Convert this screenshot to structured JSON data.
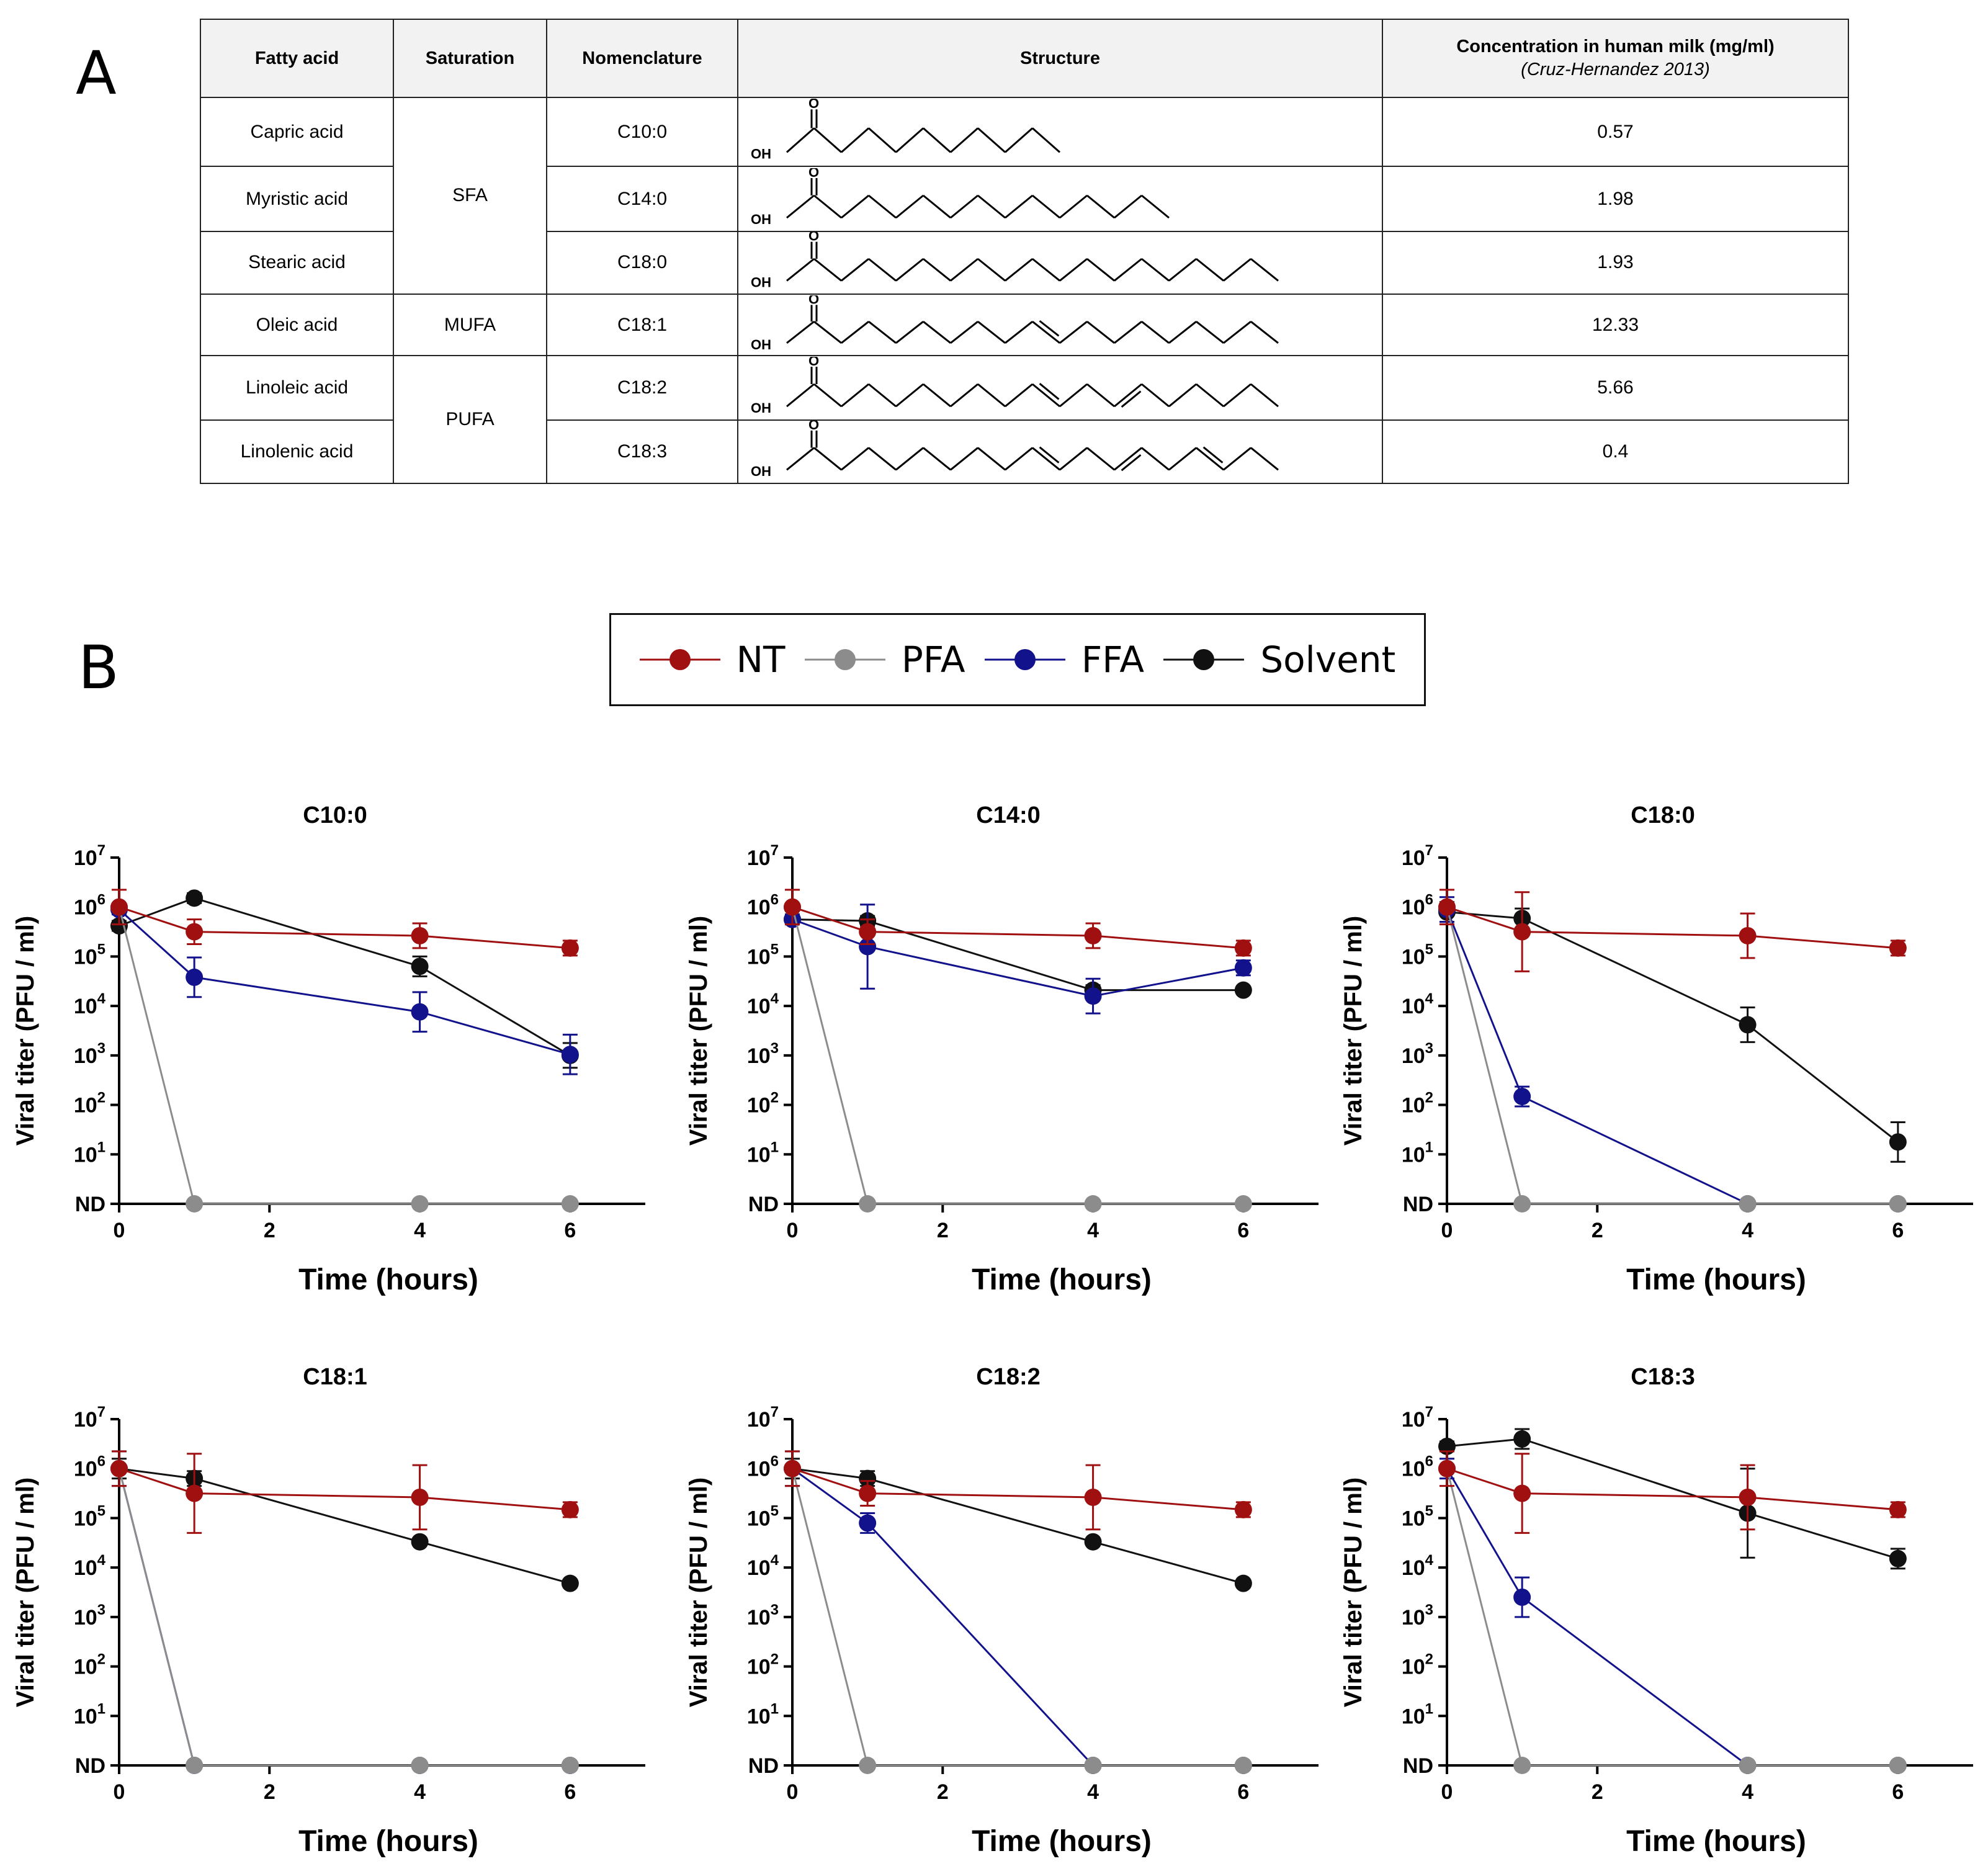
{
  "panel_a": {
    "letter": "A",
    "headers": {
      "fatty_acid": "Fatty acid",
      "saturation": "Saturation",
      "nomenclature": "Nomenclature",
      "structure": "Structure",
      "concentration": "Concentration in human milk (mg/ml)",
      "concentration_source": "(Cruz-Hernandez 2013)"
    },
    "structure_labels": {
      "oxygen": "O",
      "hydroxyl": "OH"
    },
    "groups": {
      "sfa": "SFA",
      "mufa": "MUFA",
      "pufa": "PUFA"
    },
    "rows": [
      {
        "name": "Capric acid",
        "nomenclature": "C10:0",
        "concentration": "0.57",
        "carbons": 10,
        "double_bonds": []
      },
      {
        "name": "Myristic acid",
        "nomenclature": "C14:0",
        "concentration": "1.98",
        "carbons": 14,
        "double_bonds": []
      },
      {
        "name": "Stearic acid",
        "nomenclature": "C18:0",
        "concentration": "1.93",
        "carbons": 18,
        "double_bonds": []
      },
      {
        "name": "Oleic acid",
        "nomenclature": "C18:1",
        "concentration": "12.33",
        "carbons": 18,
        "double_bonds": [
          9
        ]
      },
      {
        "name": "Linoleic acid",
        "nomenclature": "C18:2",
        "concentration": "5.66",
        "carbons": 18,
        "double_bonds": [
          9,
          12
        ]
      },
      {
        "name": "Linolenic acid",
        "nomenclature": "C18:3",
        "concentration": "0.4",
        "carbons": 18,
        "double_bonds": [
          9,
          12,
          15
        ]
      }
    ]
  },
  "panel_b": {
    "letter": "B",
    "legend": [
      {
        "key": "NT",
        "label": "NT",
        "color": "#a01010"
      },
      {
        "key": "PFA",
        "label": "PFA",
        "color": "#8c8c8c"
      },
      {
        "key": "FFA",
        "label": "FFA",
        "color": "#12128c"
      },
      {
        "key": "Solvent",
        "label": "Solvent",
        "color": "#111111"
      }
    ]
  },
  "chart_data": [
    {
      "type": "line",
      "title": "C10:0",
      "xlabel": "Time (hours)",
      "ylabel": "Viral titer (PFU / ml)",
      "x_ticks": [
        0,
        2,
        4,
        6
      ],
      "xlim": [
        0,
        7
      ],
      "y_scale": "log",
      "ylim_exp": [
        0,
        7
      ],
      "y_ticks": [
        "ND",
        "10^1",
        "10^2",
        "10^3",
        "10^4",
        "10^5",
        "10^6",
        "10^7"
      ],
      "nd_label": "ND",
      "x": [
        0,
        1,
        4,
        6
      ],
      "series": [
        {
          "name": "NT",
          "values": [
            6.0,
            5.5,
            5.42,
            5.17
          ],
          "err": [
            0.35,
            0.25,
            0.25,
            0.15
          ]
        },
        {
          "name": "PFA",
          "values": [
            6.0,
            0,
            0,
            0
          ],
          "err": [
            0,
            0,
            0,
            0
          ]
        },
        {
          "name": "FFA",
          "values": [
            5.95,
            4.58,
            3.88,
            3.02
          ],
          "err": [
            0.1,
            0.4,
            0.4,
            0.4
          ]
        },
        {
          "name": "Solvent",
          "values": [
            5.62,
            6.18,
            4.8,
            3.0
          ],
          "err": [
            0.1,
            0.1,
            0.2,
            0.25
          ]
        }
      ]
    },
    {
      "type": "line",
      "title": "C14:0",
      "xlabel": "Time (hours)",
      "ylabel": "Viral titer (PFU / ml)",
      "x_ticks": [
        0,
        2,
        4,
        6
      ],
      "xlim": [
        0,
        7
      ],
      "y_scale": "log",
      "ylim_exp": [
        0,
        7
      ],
      "y_ticks": [
        "ND",
        "10^1",
        "10^2",
        "10^3",
        "10^4",
        "10^5",
        "10^6",
        "10^7"
      ],
      "nd_label": "ND",
      "x": [
        0,
        1,
        4,
        6
      ],
      "series": [
        {
          "name": "NT",
          "values": [
            6.0,
            5.5,
            5.42,
            5.17
          ],
          "err": [
            0.35,
            0.25,
            0.25,
            0.15
          ]
        },
        {
          "name": "PFA",
          "values": [
            6.0,
            0,
            0,
            0
          ],
          "err": [
            0,
            0,
            0,
            0
          ]
        },
        {
          "name": "FFA",
          "values": [
            5.75,
            5.2,
            4.2,
            4.77
          ],
          "err": [
            0.1,
            0.85,
            0.35,
            0.15
          ]
        },
        {
          "name": "Solvent",
          "values": [
            5.75,
            5.72,
            4.32,
            4.32
          ],
          "err": [
            0.1,
            0.1,
            0.1,
            0.05
          ]
        }
      ]
    },
    {
      "type": "line",
      "title": "C18:0",
      "xlabel": "Time (hours)",
      "ylabel": "Viral titer (PFU / ml)",
      "x_ticks": [
        0,
        2,
        4,
        6
      ],
      "xlim": [
        0,
        7
      ],
      "y_scale": "log",
      "ylim_exp": [
        0,
        7
      ],
      "y_ticks": [
        "ND",
        "10^1",
        "10^2",
        "10^3",
        "10^4",
        "10^5",
        "10^6",
        "10^7"
      ],
      "nd_label": "ND",
      "x": [
        0,
        1,
        4,
        6
      ],
      "series": [
        {
          "name": "NT",
          "values": [
            6.0,
            5.5,
            5.42,
            5.17
          ],
          "err": [
            0.35,
            0.8,
            0.45,
            0.15
          ]
        },
        {
          "name": "PFA",
          "values": [
            6.0,
            0,
            0,
            0
          ],
          "err": [
            0,
            0,
            0,
            0
          ]
        },
        {
          "name": "FFA",
          "values": [
            5.95,
            2.17,
            0,
            0
          ],
          "err": [
            0.25,
            0.2,
            0,
            0
          ]
        },
        {
          "name": "Solvent",
          "values": [
            5.9,
            5.77,
            3.62,
            1.25
          ],
          "err": [
            0.2,
            0.2,
            0.35,
            0.4
          ]
        }
      ]
    },
    {
      "type": "line",
      "title": "C18:1",
      "xlabel": "Time (hours)",
      "ylabel": "Viral titer (PFU / ml)",
      "x_ticks": [
        0,
        2,
        4,
        6
      ],
      "xlim": [
        0,
        7
      ],
      "y_scale": "log",
      "ylim_exp": [
        0,
        7
      ],
      "y_ticks": [
        "ND",
        "10^1",
        "10^2",
        "10^3",
        "10^4",
        "10^5",
        "10^6",
        "10^7"
      ],
      "nd_label": "ND",
      "x": [
        0,
        1,
        4,
        6
      ],
      "series": [
        {
          "name": "NT",
          "values": [
            6.0,
            5.5,
            5.42,
            5.17
          ],
          "err": [
            0.35,
            0.8,
            0.65,
            0.15
          ]
        },
        {
          "name": "PFA",
          "values": [
            6.0,
            0,
            0,
            0
          ],
          "err": [
            0,
            0,
            0,
            0
          ]
        },
        {
          "name": "FFA",
          "values": [
            6.0,
            0,
            0,
            0
          ],
          "err": [
            0.35,
            0,
            0,
            0
          ]
        },
        {
          "name": "Solvent",
          "values": [
            6.0,
            5.8,
            4.52,
            3.68
          ],
          "err": [
            0.2,
            0.15,
            0.05,
            0.05
          ]
        }
      ]
    },
    {
      "type": "line",
      "title": "C18:2",
      "xlabel": "Time (hours)",
      "ylabel": "Viral titer (PFU / ml)",
      "x_ticks": [
        0,
        2,
        4,
        6
      ],
      "xlim": [
        0,
        7
      ],
      "y_scale": "log",
      "ylim_exp": [
        0,
        7
      ],
      "y_ticks": [
        "ND",
        "10^1",
        "10^2",
        "10^3",
        "10^4",
        "10^5",
        "10^6",
        "10^7"
      ],
      "nd_label": "ND",
      "x": [
        0,
        1,
        4,
        6
      ],
      "series": [
        {
          "name": "NT",
          "values": [
            6.0,
            5.5,
            5.42,
            5.17
          ],
          "err": [
            0.35,
            0.25,
            0.65,
            0.15
          ]
        },
        {
          "name": "PFA",
          "values": [
            6.0,
            0,
            0,
            0
          ],
          "err": [
            0,
            0,
            0,
            0
          ]
        },
        {
          "name": "FFA",
          "values": [
            6.0,
            4.9,
            0,
            0
          ],
          "err": [
            0.35,
            0.2,
            0,
            0
          ]
        },
        {
          "name": "Solvent",
          "values": [
            6.0,
            5.8,
            4.52,
            3.68
          ],
          "err": [
            0.2,
            0.15,
            0.05,
            0.05
          ]
        }
      ]
    },
    {
      "type": "line",
      "title": "C18:3",
      "xlabel": "Time (hours)",
      "ylabel": "Viral titer (PFU / ml)",
      "x_ticks": [
        0,
        2,
        4,
        6
      ],
      "xlim": [
        0,
        7
      ],
      "y_scale": "log",
      "ylim_exp": [
        0,
        7
      ],
      "y_ticks": [
        "ND",
        "10^1",
        "10^2",
        "10^3",
        "10^4",
        "10^5",
        "10^6",
        "10^7"
      ],
      "nd_label": "ND",
      "x": [
        0,
        1,
        4,
        6
      ],
      "series": [
        {
          "name": "NT",
          "values": [
            6.0,
            5.5,
            5.42,
            5.17
          ],
          "err": [
            0.35,
            0.8,
            0.65,
            0.15
          ]
        },
        {
          "name": "PFA",
          "values": [
            6.0,
            0,
            0,
            0
          ],
          "err": [
            0,
            0,
            0,
            0
          ]
        },
        {
          "name": "FFA",
          "values": [
            6.0,
            3.4,
            0,
            0
          ],
          "err": [
            0.2,
            0.4,
            0,
            0
          ]
        },
        {
          "name": "Solvent",
          "values": [
            6.45,
            6.6,
            5.1,
            4.18
          ],
          "err": [
            0.1,
            0.2,
            0.9,
            0.2
          ]
        }
      ]
    }
  ]
}
